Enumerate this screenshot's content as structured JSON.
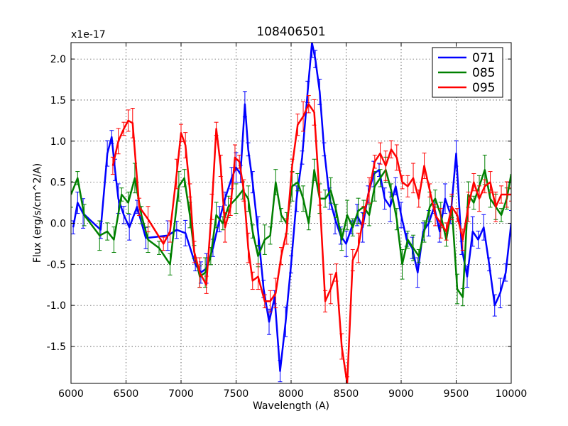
{
  "chart_data": {
    "type": "line",
    "title": "108406501",
    "xlabel": "Wavelength (A)",
    "ylabel": "Flux (erg/s/cm^2/A)",
    "offset_label": "x1e-17",
    "xlim": [
      6000,
      10000
    ],
    "ylim": [
      -1.95,
      2.2
    ],
    "xticks": [
      6000,
      6500,
      7000,
      7500,
      8000,
      8500,
      9000,
      9500,
      10000
    ],
    "xtick_labels": [
      "6000",
      "6500",
      "7000",
      "7500",
      "8000",
      "8500",
      "9000",
      "9500",
      "10000"
    ],
    "yticks": [
      -1.5,
      -1.0,
      -0.5,
      0.0,
      0.5,
      1.0,
      1.5,
      2.0
    ],
    "ytick_labels": [
      "-1.5",
      "-1.0",
      "-0.5",
      "0.0",
      "0.5",
      "1.0",
      "1.5",
      "2.0"
    ],
    "grid": true,
    "legend": "top-right",
    "series": [
      {
        "name": "071",
        "color": "#0000ff",
        "x": [
          6020,
          6060,
          6110,
          6270,
          6330,
          6370,
          6400,
          6430,
          6480,
          6530,
          6600,
          6680,
          6880,
          6960,
          7040,
          7130,
          7180,
          7230,
          7290,
          7350,
          7400,
          7460,
          7500,
          7540,
          7580,
          7610,
          7650,
          7700,
          7750,
          7800,
          7850,
          7900,
          7950,
          8000,
          8050,
          8100,
          8150,
          8190,
          8220,
          8260,
          8300,
          8350,
          8400,
          8450,
          8500,
          8550,
          8600,
          8650,
          8700,
          8750,
          8800,
          8850,
          8900,
          8950,
          9000,
          9050,
          9100,
          9150,
          9200,
          9250,
          9300,
          9350,
          9400,
          9450,
          9500,
          9550,
          9600,
          9650,
          9700,
          9750,
          9800,
          9850,
          9900,
          9950,
          10000
        ],
        "y": [
          -0.05,
          0.25,
          0.12,
          -0.08,
          0.85,
          1.05,
          0.65,
          0.3,
          0.1,
          -0.05,
          0.2,
          -0.18,
          -0.15,
          -0.08,
          -0.12,
          -0.5,
          -0.6,
          -0.55,
          -0.3,
          0.05,
          0.3,
          0.55,
          0.68,
          0.6,
          1.45,
          0.9,
          0.5,
          -0.1,
          -0.8,
          -1.2,
          -0.9,
          -1.8,
          -1.2,
          -0.5,
          0.3,
          0.8,
          1.6,
          2.2,
          2.0,
          1.6,
          0.9,
          0.3,
          0.05,
          -0.15,
          -0.25,
          -0.05,
          0.1,
          -0.05,
          0.35,
          0.6,
          0.65,
          0.3,
          0.2,
          0.45,
          0.1,
          -0.2,
          -0.3,
          -0.6,
          -0.1,
          0.0,
          0.2,
          -0.1,
          0.3,
          0.1,
          0.85,
          -0.3,
          -0.65,
          -0.1,
          -0.2,
          -0.05,
          -0.5,
          -1.0,
          -0.85,
          -0.6,
          0.0
        ]
      },
      {
        "name": "085",
        "color": "#008000",
        "x": [
          6000,
          6060,
          6120,
          6260,
          6330,
          6390,
          6460,
          6520,
          6580,
          6640,
          6700,
          6800,
          6900,
          6980,
          7030,
          7080,
          7120,
          7170,
          7220,
          7270,
          7320,
          7380,
          7430,
          7500,
          7560,
          7610,
          7650,
          7700,
          7760,
          7810,
          7860,
          7910,
          7960,
          8010,
          8060,
          8110,
          8160,
          8210,
          8260,
          8310,
          8360,
          8410,
          8460,
          8510,
          8560,
          8610,
          8660,
          8710,
          8760,
          8810,
          8860,
          8910,
          8960,
          9010,
          9060,
          9110,
          9160,
          9210,
          9260,
          9310,
          9360,
          9410,
          9460,
          9510,
          9560,
          9610,
          9660,
          9710,
          9760,
          9810,
          9860,
          9910,
          9960,
          10000
        ],
        "y": [
          0.35,
          0.55,
          0.1,
          -0.15,
          -0.1,
          -0.2,
          0.35,
          0.25,
          0.55,
          0.1,
          -0.2,
          -0.3,
          -0.5,
          0.45,
          0.55,
          0.1,
          -0.35,
          -0.65,
          -0.6,
          -0.4,
          0.1,
          0.0,
          0.2,
          0.3,
          0.4,
          0.3,
          -0.1,
          -0.4,
          -0.2,
          -0.15,
          0.5,
          0.1,
          0.0,
          0.45,
          0.5,
          0.3,
          0.0,
          0.65,
          0.3,
          0.3,
          0.4,
          0.15,
          -0.2,
          0.1,
          -0.05,
          0.15,
          0.2,
          0.1,
          0.45,
          0.55,
          0.65,
          0.4,
          0.05,
          -0.5,
          -0.2,
          -0.3,
          -0.4,
          -0.1,
          0.2,
          0.3,
          0.1,
          -0.2,
          0.2,
          -0.8,
          -0.9,
          0.35,
          0.25,
          0.45,
          0.65,
          0.3,
          0.2,
          0.1,
          0.3,
          0.6
        ]
      },
      {
        "name": "095",
        "color": "#ff0000",
        "x": [
          6380,
          6430,
          6480,
          6520,
          6560,
          6620,
          6700,
          6840,
          6900,
          6960,
          7000,
          7040,
          7080,
          7120,
          7170,
          7230,
          7280,
          7320,
          7360,
          7400,
          7450,
          7490,
          7530,
          7570,
          7610,
          7650,
          7700,
          7760,
          7810,
          7860,
          7910,
          7960,
          8010,
          8060,
          8110,
          8160,
          8210,
          8260,
          8310,
          8360,
          8410,
          8460,
          8510,
          8560,
          8610,
          8660,
          8710,
          8760,
          8810,
          8860,
          8910,
          8960,
          9010,
          9060,
          9110,
          9160,
          9210,
          9260,
          9310,
          9360,
          9410,
          9460,
          9510,
          9560,
          9610,
          9660,
          9710,
          9760,
          9810,
          9860,
          9910,
          9960,
          10000
        ],
        "y": [
          0.7,
          1.0,
          1.15,
          1.25,
          1.22,
          0.2,
          0.05,
          -0.25,
          -0.1,
          0.6,
          1.1,
          0.95,
          0.4,
          -0.35,
          -0.6,
          -0.75,
          0.2,
          1.15,
          0.7,
          -0.05,
          0.2,
          0.8,
          0.75,
          0.4,
          -0.3,
          -0.7,
          -0.65,
          -0.95,
          -0.95,
          -0.85,
          -0.4,
          -0.1,
          0.7,
          1.2,
          1.3,
          1.45,
          1.35,
          0.3,
          -0.95,
          -0.8,
          -0.6,
          -1.5,
          -1.95,
          -0.45,
          -0.3,
          0.1,
          0.4,
          0.75,
          0.85,
          0.7,
          0.9,
          0.8,
          0.5,
          0.45,
          0.55,
          0.3,
          0.7,
          0.4,
          0.1,
          0.0,
          -0.1,
          0.2,
          0.1,
          -0.2,
          0.2,
          0.5,
          0.3,
          0.45,
          0.5,
          0.2,
          0.35,
          0.35,
          0.35
        ]
      }
    ]
  }
}
